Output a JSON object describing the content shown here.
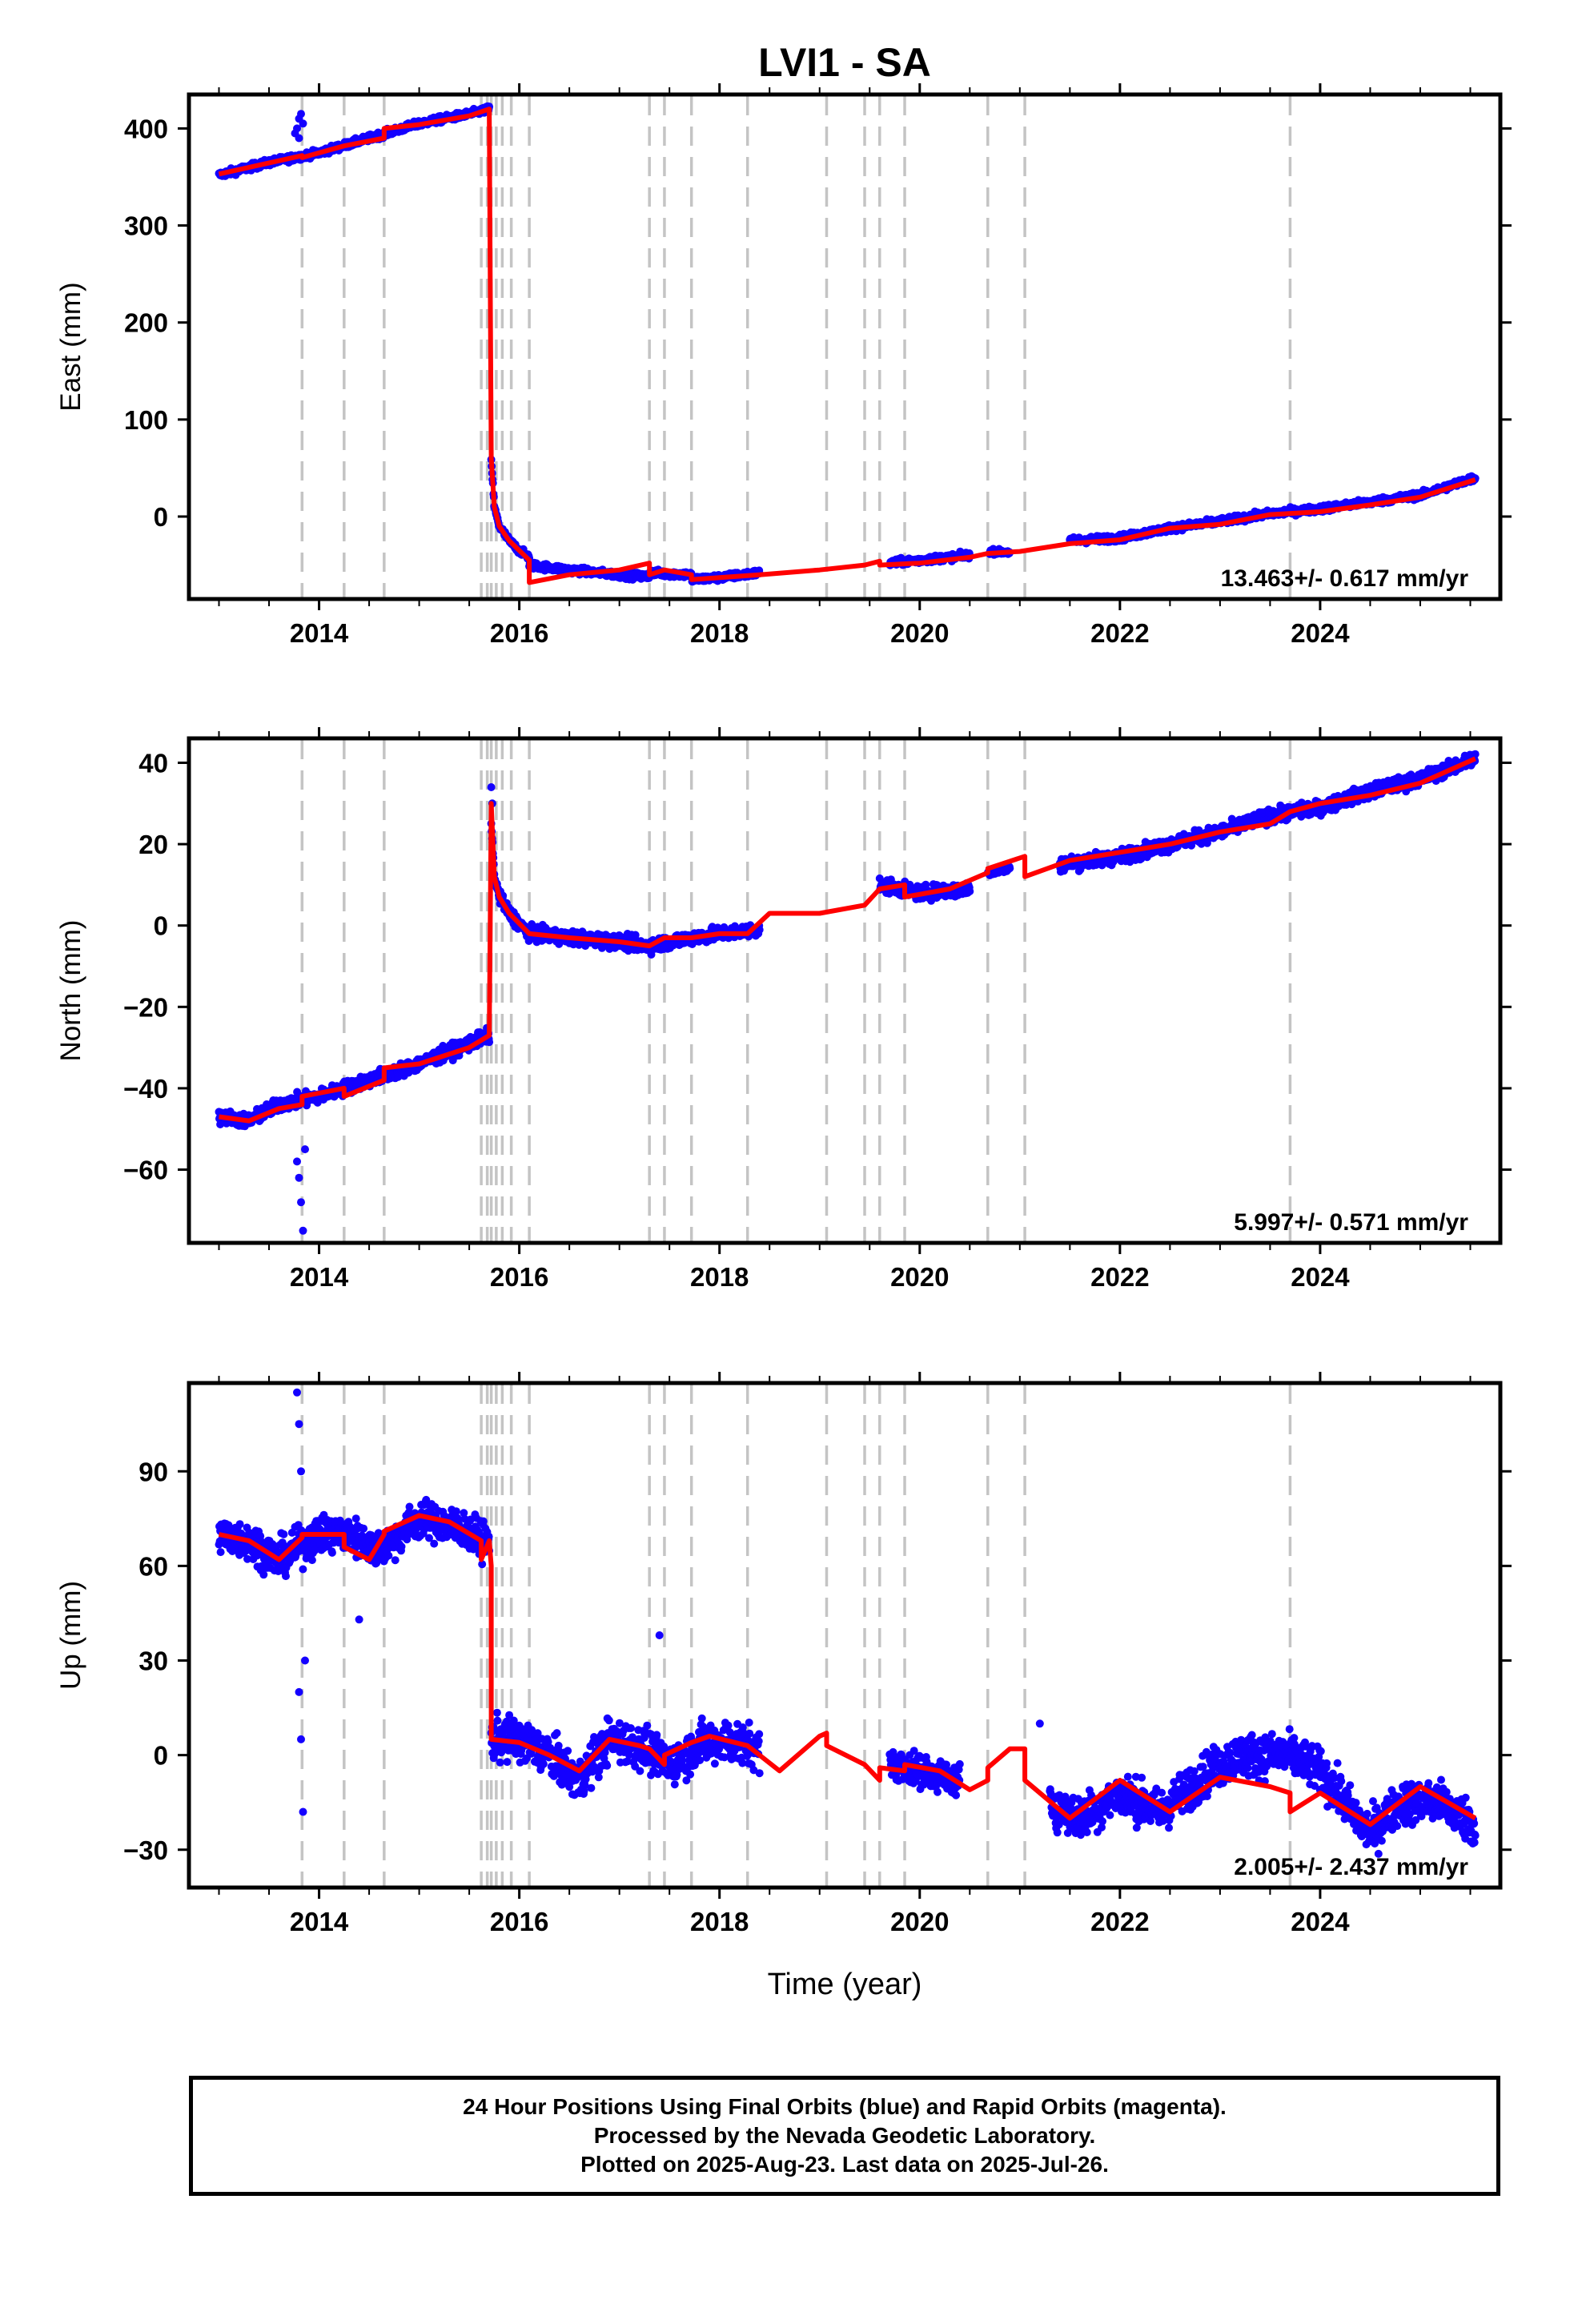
{
  "title": "LVI1 - SA",
  "xlabel": "Time (year)",
  "colors": {
    "data": "#1400ff",
    "fit": "#ff0000",
    "event": "#c4c4c4"
  },
  "events": [
    2013.83,
    2014.25,
    2014.65,
    2015.62,
    2015.68,
    2015.72,
    2015.77,
    2015.83,
    2015.92,
    2016.1,
    2017.3,
    2017.45,
    2017.72,
    2018.28,
    2019.07,
    2019.45,
    2019.6,
    2019.85,
    2020.68,
    2021.05,
    2023.7
  ],
  "footer": {
    "line1": "24 Hour Positions Using Final Orbits (blue) and Rapid Orbits (magenta).",
    "line2": "Processed by the Nevada Geodetic Laboratory.",
    "line3": "Plotted on 2025-Aug-23. Last data on 2025-Jul-26."
  },
  "chart_data": [
    {
      "type": "scatter",
      "ylabel": "East (mm)",
      "rate_label": "13.463+/- 0.617 mm/yr",
      "xlim": [
        2012.7,
        2025.8
      ],
      "ylim": [
        -85,
        435
      ],
      "xticks": [
        2014,
        2016,
        2018,
        2020,
        2022,
        2024
      ],
      "yticks": [
        0,
        100,
        200,
        300,
        400
      ],
      "grid": false,
      "series": [
        {
          "role": "data",
          "color": "#1400ff",
          "segments": [
            {
              "x": [
                2013.0,
                2013.5,
                2014.0,
                2014.5,
                2015.0,
                2015.5,
                2015.7
              ],
              "y": [
                352,
                365,
                375,
                390,
                405,
                415,
                420
              ],
              "spread": 4
            },
            {
              "x": [
                2015.72,
                2015.75,
                2015.8,
                2015.9,
                2016.0,
                2016.1
              ],
              "y": [
                60,
                10,
                -10,
                -25,
                -35,
                -42
              ],
              "spread": 4
            },
            {
              "x": [
                2016.1,
                2016.5,
                2017.0,
                2017.3
              ],
              "y": [
                -50,
                -55,
                -60,
                -62
              ],
              "spread": 4
            },
            {
              "x": [
                2017.3,
                2017.72,
                2017.72,
                2018.0,
                2018.4
              ],
              "y": [
                -58,
                -60,
                -65,
                -63,
                -58
              ],
              "spread": 4
            },
            {
              "x": [
                2019.7,
                2020.0,
                2020.5
              ],
              "y": [
                -48,
                -45,
                -40
              ],
              "spread": 4
            },
            {
              "x": [
                2020.7,
                2020.9
              ],
              "y": [
                -36,
                -37
              ],
              "spread": 3
            },
            {
              "x": [
                2021.5,
                2022.0,
                2022.5,
                2023.0,
                2023.5,
                2024.0,
                2024.5,
                2025.0,
                2025.55
              ],
              "y": [
                -25,
                -22,
                -12,
                -5,
                3,
                8,
                15,
                22,
                40
              ],
              "spread": 4
            }
          ],
          "extra_points": [
            [
              2013.78,
              400
            ],
            [
              2013.8,
              410
            ],
            [
              2013.82,
              415
            ],
            [
              2013.8,
              390
            ],
            [
              2013.84,
              405
            ],
            [
              2013.76,
              395
            ]
          ]
        },
        {
          "role": "fit",
          "color": "#ff0000",
          "x": [
            2013.0,
            2013.83,
            2013.83,
            2014.25,
            2014.65,
            2014.65,
            2015.0,
            2015.5,
            2015.7,
            2015.7,
            2015.72,
            2015.75,
            2015.8,
            2015.9,
            2016.0,
            2016.1,
            2016.1,
            2016.5,
            2017.0,
            2017.3,
            2017.3,
            2017.45,
            2017.72,
            2017.72,
            2018.0,
            2018.4,
            2019.0,
            2019.45,
            2019.6,
            2019.6,
            2020.0,
            2020.5,
            2020.68,
            2021.0,
            2021.5,
            2022.0,
            2022.5,
            2023.0,
            2023.5,
            2024.0,
            2024.5,
            2025.0,
            2025.55
          ],
          "y": [
            353,
            372,
            370,
            382,
            390,
            400,
            404,
            413,
            420,
            420,
            60,
            10,
            -10,
            -25,
            -35,
            -45,
            -68,
            -60,
            -55,
            -48,
            -60,
            -55,
            -60,
            -65,
            -63,
            -60,
            -55,
            -50,
            -46,
            -50,
            -48,
            -42,
            -38,
            -36,
            -28,
            -24,
            -12,
            -8,
            2,
            5,
            12,
            20,
            38
          ]
        }
      ]
    },
    {
      "type": "scatter",
      "ylabel": "North (mm)",
      "rate_label": "5.997+/- 0.571 mm/yr",
      "xlim": [
        2012.7,
        2025.8
      ],
      "ylim": [
        -78,
        46
      ],
      "xticks": [
        2014,
        2016,
        2018,
        2020,
        2022,
        2024
      ],
      "yticks": [
        -60,
        -40,
        -20,
        0,
        20,
        40
      ],
      "grid": false,
      "series": [
        {
          "role": "data",
          "color": "#1400ff",
          "segments": [
            {
              "x": [
                2013.0,
                2013.3,
                2013.6,
                2014.0,
                2014.5,
                2015.0,
                2015.5,
                2015.7
              ],
              "y": [
                -47,
                -48,
                -44,
                -42,
                -38,
                -34,
                -29,
                -27
              ],
              "spread": 2
            },
            {
              "x": [
                2015.72,
                2015.75,
                2015.8,
                2015.9,
                2016.1,
                2016.5,
                2017.0,
                2017.3,
                2017.72,
                2018.0,
                2018.4
              ],
              "y": [
                25,
                12,
                7,
                3,
                -2,
                -3,
                -4,
                -5,
                -3,
                -2,
                -1
              ],
              "spread": 2
            },
            {
              "x": [
                2019.6,
                2020.0,
                2020.5
              ],
              "y": [
                10,
                8,
                9
              ],
              "spread": 2
            },
            {
              "x": [
                2020.68,
                2020.9
              ],
              "y": [
                13,
                14
              ],
              "spread": 1
            },
            {
              "x": [
                2021.4,
                2022.0,
                2022.5,
                2023.0,
                2023.5,
                2024.0,
                2024.5,
                2025.0,
                2025.55
              ],
              "y": [
                15,
                17,
                20,
                23,
                27,
                29,
                33,
                36,
                41
              ],
              "spread": 2
            }
          ],
          "extra_points": [
            [
              2013.8,
              -62
            ],
            [
              2013.82,
              -68
            ],
            [
              2013.84,
              -75
            ],
            [
              2013.78,
              -58
            ],
            [
              2013.86,
              -55
            ],
            [
              2015.72,
              34
            ],
            [
              2015.73,
              30
            ]
          ]
        },
        {
          "role": "fit",
          "color": "#ff0000",
          "x": [
            2013.0,
            2013.3,
            2013.6,
            2013.83,
            2013.83,
            2014.25,
            2014.25,
            2014.65,
            2014.65,
            2015.0,
            2015.5,
            2015.7,
            2015.7,
            2015.72,
            2015.75,
            2015.8,
            2015.9,
            2016.1,
            2016.5,
            2017.0,
            2017.3,
            2017.45,
            2017.72,
            2018.0,
            2018.28,
            2018.5,
            2019.0,
            2019.45,
            2019.6,
            2019.85,
            2019.85,
            2020.3,
            2020.68,
            2020.68,
            2021.05,
            2021.05,
            2021.5,
            2022.0,
            2022.5,
            2023.0,
            2023.5,
            2023.7,
            2024.0,
            2024.5,
            2025.0,
            2025.55
          ],
          "y": [
            -47,
            -48,
            -45,
            -44,
            -42,
            -40,
            -42,
            -38,
            -35,
            -34,
            -30,
            -27,
            -27,
            30,
            12,
            7,
            3,
            -2,
            -3,
            -4,
            -5,
            -3,
            -3,
            -2,
            -2,
            3,
            3,
            5,
            9,
            10,
            7,
            9,
            13,
            14,
            17,
            12,
            16,
            18,
            20,
            23,
            25,
            28,
            30,
            32,
            35,
            41
          ]
        }
      ]
    },
    {
      "type": "scatter",
      "ylabel": "Up (mm)",
      "rate_label": "2.005+/- 2.437 mm/yr",
      "xlim": [
        2012.7,
        2025.8
      ],
      "ylim": [
        -42,
        118
      ],
      "xticks": [
        2014,
        2016,
        2018,
        2020,
        2022,
        2024
      ],
      "yticks": [
        -30,
        0,
        30,
        60,
        90
      ],
      "grid": false,
      "series": [
        {
          "role": "data",
          "color": "#1400ff",
          "segments": [
            {
              "x": [
                2013.0,
                2013.3,
                2013.6,
                2014.0,
                2014.3,
                2014.6,
                2015.0,
                2015.4,
                2015.7
              ],
              "y": [
                70,
                68,
                62,
                70,
                70,
                65,
                75,
                72,
                67
              ],
              "spread": 7
            },
            {
              "x": [
                2015.72,
                2016.0,
                2016.3,
                2016.6,
                2016.9,
                2017.2,
                2017.5,
                2017.8,
                2018.0,
                2018.4
              ],
              "y": [
                5,
                5,
                0,
                -8,
                5,
                3,
                -3,
                3,
                5,
                2
              ],
              "spread": 8
            },
            {
              "x": [
                2019.7,
                2020.0,
                2020.4
              ],
              "y": [
                -3,
                -5,
                -8
              ],
              "spread": 6
            },
            {
              "x": [
                2021.3,
                2021.6,
                2022.0,
                2022.4,
                2022.9,
                2023.2,
                2023.7,
                2024.0,
                2024.5,
                2024.8,
                2025.2,
                2025.55
              ],
              "y": [
                -15,
                -20,
                -12,
                -18,
                -5,
                0,
                0,
                -5,
                -25,
                -15,
                -15,
                -22
              ],
              "spread": 8
            }
          ],
          "extra_points": [
            [
              2013.78,
              115
            ],
            [
              2013.8,
              105
            ],
            [
              2013.82,
              90
            ],
            [
              2013.8,
              20
            ],
            [
              2013.82,
              5
            ],
            [
              2013.84,
              -18
            ],
            [
              2013.86,
              30
            ],
            [
              2014.4,
              43
            ],
            [
              2017.4,
              38
            ],
            [
              2019.9,
              0
            ],
            [
              2021.2,
              10
            ]
          ]
        },
        {
          "role": "fit",
          "color": "#ff0000",
          "x": [
            2013.0,
            2013.3,
            2013.6,
            2013.83,
            2013.83,
            2014.25,
            2014.25,
            2014.5,
            2014.65,
            2014.65,
            2015.0,
            2015.3,
            2015.62,
            2015.62,
            2015.7,
            2015.72,
            2015.72,
            2016.0,
            2016.3,
            2016.6,
            2016.9,
            2017.2,
            2017.3,
            2017.45,
            2017.45,
            2017.72,
            2017.9,
            2018.28,
            2018.6,
            2019.0,
            2019.07,
            2019.07,
            2019.45,
            2019.6,
            2019.6,
            2019.85,
            2019.85,
            2020.2,
            2020.5,
            2020.68,
            2020.68,
            2020.9,
            2021.05,
            2021.05,
            2021.5,
            2022.0,
            2022.5,
            2023.0,
            2023.5,
            2023.7,
            2023.7,
            2024.0,
            2024.5,
            2025.0,
            2025.55
          ],
          "y": [
            70,
            68,
            62,
            69,
            70,
            70,
            66,
            62,
            70,
            71,
            76,
            74,
            68,
            62,
            68,
            60,
            5,
            4,
            0,
            -5,
            5,
            3,
            2,
            -3,
            0,
            4,
            6,
            3,
            -5,
            6,
            7,
            3,
            -3,
            -8,
            -4,
            -5,
            -3,
            -5,
            -11,
            -8,
            -4,
            2,
            2,
            -8,
            -20,
            -8,
            -18,
            -7,
            -10,
            -12,
            -18,
            -12,
            -22,
            -10,
            -20
          ]
        }
      ]
    }
  ]
}
